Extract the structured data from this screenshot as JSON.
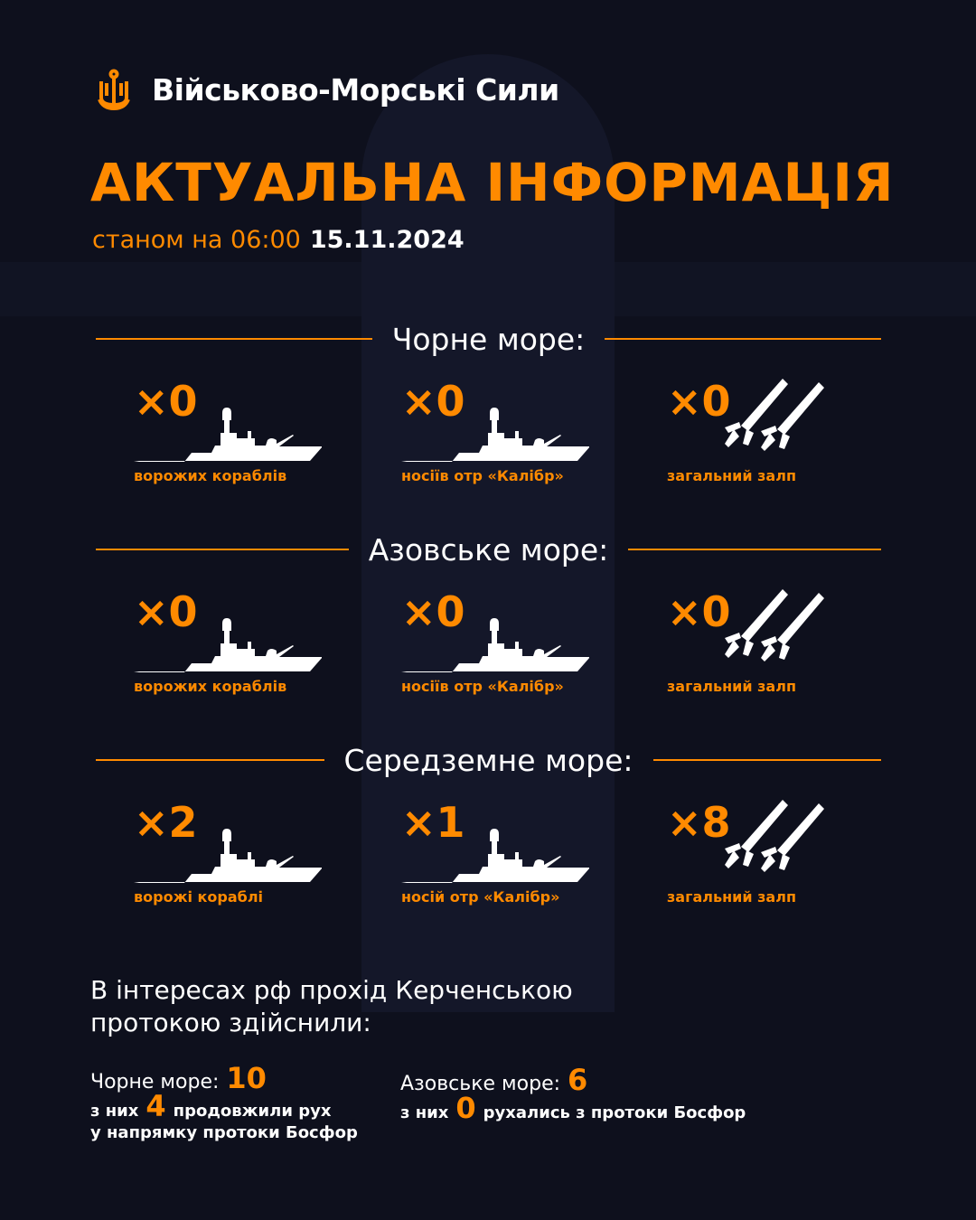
{
  "header": {
    "org_name": "Військово-Морські Сили",
    "title": "АКТУАЛЬНА ІНФОРМАЦІЯ",
    "status_prefix": "станом на 06:00",
    "date": "15.11.2024"
  },
  "colors": {
    "accent": "#ff8a00",
    "background": "#0e101d"
  },
  "seas": [
    {
      "name": "Чорне море:",
      "ships": {
        "count": "×0",
        "label": "ворожих кораблів"
      },
      "carriers": {
        "count": "×0",
        "label": "носіїв отр «Калібр»"
      },
      "salvo": {
        "count": "×0",
        "label": "загальний залп"
      }
    },
    {
      "name": "Азовське море:",
      "ships": {
        "count": "×0",
        "label": "ворожих кораблів"
      },
      "carriers": {
        "count": "×0",
        "label": "носіїв отр «Калібр»"
      },
      "salvo": {
        "count": "×0",
        "label": "загальний залп"
      }
    },
    {
      "name": "Середземне море:",
      "ships": {
        "count": "×2",
        "label": "ворожі кораблі"
      },
      "carriers": {
        "count": "×1",
        "label": "носій отр «Калібр»"
      },
      "salvo": {
        "count": "×8",
        "label": "загальний залп"
      }
    }
  ],
  "kerch": {
    "title_line1": "В інтересах рф прохід Керченською",
    "title_line2": "протокою здійснили:",
    "black": {
      "label": "Чорне море:",
      "total": "10",
      "prefix": "з них",
      "count": "4",
      "text1": "продовжили рух",
      "text2": "у напрямку протоки Босфор"
    },
    "azov": {
      "label": "Азовське море:",
      "total": "6",
      "prefix": "з них",
      "count": "0",
      "text1": "рухались з протоки Босфор"
    }
  }
}
